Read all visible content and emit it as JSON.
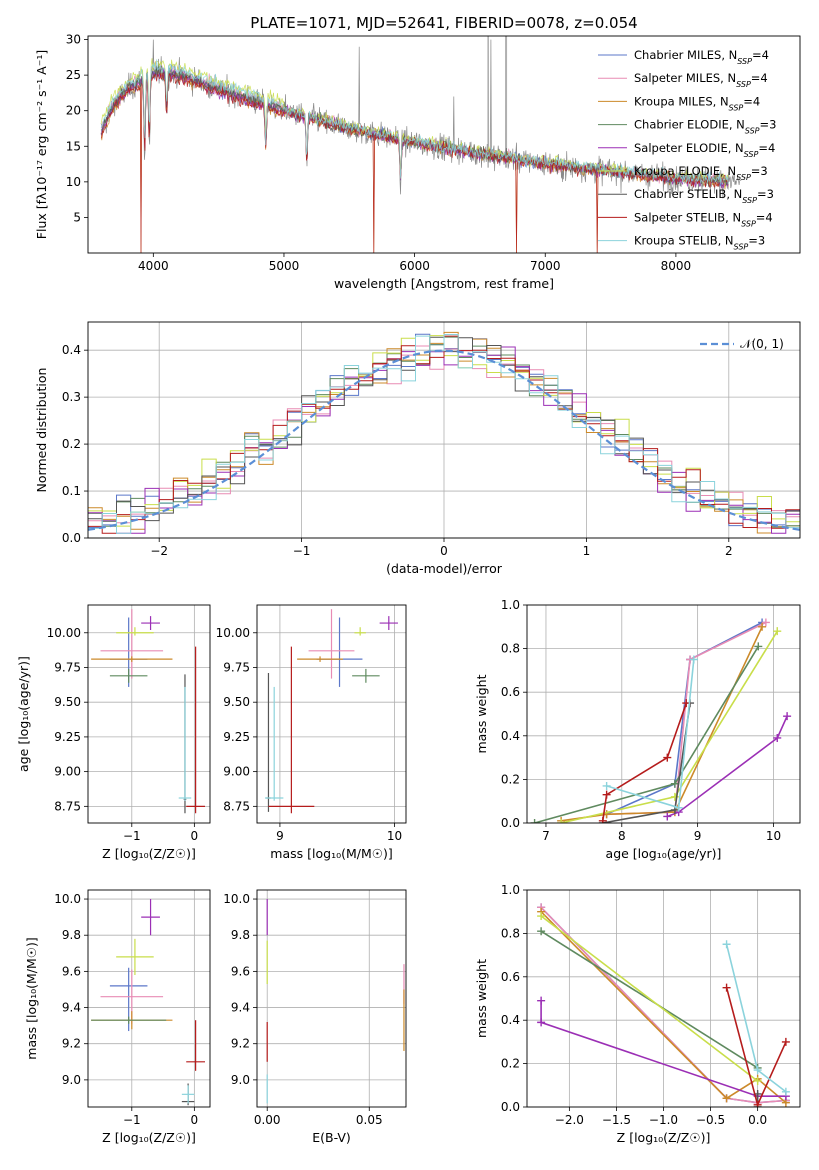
{
  "colors": {
    "chabrier_miles": "#5b77c9",
    "salpeter_miles": "#e88bb4",
    "kroupa_miles": "#cc8a2a",
    "chabrier_elodie": "#5f8a5f",
    "salpeter_elodie": "#9b2fb5",
    "kroupa_elodie": "#c9de4a",
    "chabrier_stelib": "#555555",
    "salpeter_stelib": "#b51c1c",
    "kroupa_stelib": "#8bd3dc",
    "gaussian": "#5b8fd6",
    "grid": "#b0b0b0"
  },
  "chart_data": [
    {
      "id": "spectrum",
      "type": "line",
      "title": "PLATE=1071, MJD=52641, FIBERID=0078, z=0.054",
      "xlabel": "wavelength [Angstrom, rest frame]",
      "ylabel": "Flux [fλ10⁻¹⁷ erg cm⁻² s⁻¹ A⁻¹]",
      "xlim": [
        3500,
        8950
      ],
      "ylim": [
        0,
        30.5
      ],
      "xticks": [
        4000,
        5000,
        6000,
        7000,
        8000
      ],
      "yticks": [
        5,
        10,
        15,
        20,
        25,
        30
      ],
      "legend": {
        "placement": "upper right",
        "entries": [
          {
            "label": "Chabrier MILES, N",
            "sub": "SSP",
            "suffix": "=4",
            "color_key": "chabrier_miles"
          },
          {
            "label": "Salpeter MILES, N",
            "sub": "SSP",
            "suffix": "=4",
            "color_key": "salpeter_miles"
          },
          {
            "label": "Kroupa MILES, N",
            "sub": "SSP",
            "suffix": "=4",
            "color_key": "kroupa_miles"
          },
          {
            "label": "Chabrier ELODIE, N",
            "sub": "SSP",
            "suffix": "=3",
            "color_key": "chabrier_elodie"
          },
          {
            "label": "Salpeter ELODIE, N",
            "sub": "SSP",
            "suffix": "=4",
            "color_key": "salpeter_elodie"
          },
          {
            "label": "Kroupa ELODIE, N",
            "sub": "SSP",
            "suffix": "=3",
            "color_key": "kroupa_elodie"
          },
          {
            "label": "Chabrier STELIB, N",
            "sub": "SSP",
            "suffix": "=3",
            "color_key": "chabrier_stelib"
          },
          {
            "label": "Salpeter STELIB, N",
            "sub": "SSP",
            "suffix": "=4",
            "color_key": "salpeter_stelib"
          },
          {
            "label": "Kroupa STELIB, N",
            "sub": "SSP",
            "suffix": "=3",
            "color_key": "kroupa_stelib"
          }
        ]
      },
      "continuum": [
        [
          3600,
          17
        ],
        [
          3700,
          21
        ],
        [
          3800,
          23
        ],
        [
          3900,
          24
        ],
        [
          4000,
          25.5
        ],
        [
          4200,
          25
        ],
        [
          4500,
          23
        ],
        [
          5000,
          20
        ],
        [
          5500,
          17.5
        ],
        [
          6000,
          15.5
        ],
        [
          6500,
          14
        ],
        [
          7000,
          12.5
        ],
        [
          7500,
          11.5
        ],
        [
          8000,
          10.5
        ],
        [
          8500,
          10
        ]
      ],
      "absorption_lines": [
        [
          3934,
          11
        ],
        [
          3969,
          10
        ],
        [
          4102,
          6
        ],
        [
          4861,
          6
        ],
        [
          5175,
          7
        ],
        [
          5893,
          6
        ]
      ],
      "emission_spikes": [
        [
          4000,
          30
        ],
        [
          5577,
          29
        ],
        [
          6300,
          22
        ],
        [
          6563,
          30
        ],
        [
          6583,
          30
        ],
        [
          6700,
          30
        ]
      ],
      "model_drops": [
        [
          5690,
          0
        ],
        [
          6780,
          0
        ],
        [
          7400,
          0
        ],
        [
          3905,
          0
        ]
      ]
    },
    {
      "id": "residuals",
      "type": "step",
      "xlabel": "(data-model)/error",
      "ylabel": "Normed distribution",
      "xlim": [
        -2.5,
        2.5
      ],
      "ylim": [
        0,
        0.46
      ],
      "xticks": [
        -2,
        -1,
        0,
        1,
        2
      ],
      "yticks": [
        0.0,
        0.1,
        0.2,
        0.3,
        0.4
      ],
      "legend": {
        "placement": "upper right",
        "entries": [
          {
            "label": "𝒩(0, 1)",
            "color_key": "gaussian",
            "style": "dashed"
          }
        ]
      },
      "bin_width": 0.1
    },
    {
      "id": "age_vs_Z",
      "type": "errorbar",
      "xlabel": "Z [log₁₀(Z/Z☉)]",
      "ylabel": "age  [log₁₀(age/yr)]",
      "xlim": [
        -1.7,
        0.25
      ],
      "ylim": [
        8.63,
        10.2
      ],
      "xticks": [
        -1,
        0
      ],
      "yticks": [
        8.75,
        9.0,
        9.25,
        9.5,
        9.75,
        10.0
      ],
      "points": [
        {
          "color_key": "chabrier_miles",
          "x": -1.05,
          "y": 9.81,
          "xerr": 0.3,
          "yerr": [
            0.2,
            0.3
          ]
        },
        {
          "color_key": "salpeter_miles",
          "x": -1.0,
          "y": 9.87,
          "xerr": 0.5,
          "yerr": [
            0.2,
            0.3
          ]
        },
        {
          "color_key": "kroupa_miles",
          "x": -1.0,
          "y": 9.81,
          "xerr": 0.65,
          "yerr": [
            0.02,
            0.02
          ]
        },
        {
          "color_key": "chabrier_elodie",
          "x": -1.05,
          "y": 9.69,
          "xerr": 0.3,
          "yerr": [
            0.05,
            0.05
          ]
        },
        {
          "color_key": "salpeter_elodie",
          "x": -0.7,
          "y": 10.07,
          "xerr": 0.15,
          "yerr": [
            0.05,
            0.05
          ]
        },
        {
          "color_key": "kroupa_elodie",
          "x": -0.95,
          "y": 10.0,
          "xerr": 0.3,
          "yerr": [
            0.02,
            0.04
          ]
        },
        {
          "color_key": "chabrier_stelib",
          "x": -0.15,
          "y": 8.8,
          "xerr": 0.02,
          "yerr": [
            0.1,
            0.9
          ]
        },
        {
          "color_key": "salpeter_stelib",
          "x": 0.02,
          "y": 8.75,
          "xerr": 0.15,
          "yerr": [
            0.05,
            1.15
          ]
        },
        {
          "color_key": "kroupa_stelib",
          "x": -0.15,
          "y": 8.81,
          "xerr": 0.1,
          "yerr": [
            0.02,
            0.8
          ]
        }
      ]
    },
    {
      "id": "age_vs_mass",
      "type": "errorbar",
      "xlabel": "mass [log₁₀(M/M☉)]",
      "ylabel": "",
      "xlim": [
        8.8,
        10.1
      ],
      "ylim": [
        8.63,
        10.2
      ],
      "xticks": [
        9,
        10
      ],
      "yticks": [
        8.75,
        9.0,
        9.25,
        9.5,
        9.75,
        10.0
      ],
      "points": [
        {
          "color_key": "chabrier_miles",
          "x": 9.52,
          "y": 9.81,
          "xerr": 0.2,
          "yerr": [
            0.2,
            0.3
          ]
        },
        {
          "color_key": "salpeter_miles",
          "x": 9.45,
          "y": 9.87,
          "xerr": 0.2,
          "yerr": [
            0.2,
            0.3
          ]
        },
        {
          "color_key": "kroupa_miles",
          "x": 9.35,
          "y": 9.81,
          "xerr": 0.2,
          "yerr": [
            0.02,
            0.02
          ]
        },
        {
          "color_key": "chabrier_elodie",
          "x": 9.75,
          "y": 9.69,
          "xerr": 0.12,
          "yerr": [
            0.05,
            0.05
          ]
        },
        {
          "color_key": "salpeter_elodie",
          "x": 9.95,
          "y": 10.07,
          "xerr": 0.08,
          "yerr": [
            0.05,
            0.05
          ]
        },
        {
          "color_key": "kroupa_elodie",
          "x": 9.7,
          "y": 10.0,
          "xerr": 0.05,
          "yerr": [
            0.02,
            0.04
          ]
        },
        {
          "color_key": "chabrier_stelib",
          "x": 8.9,
          "y": 8.81,
          "xerr": 0.02,
          "yerr": [
            0.1,
            0.9
          ]
        },
        {
          "color_key": "salpeter_stelib",
          "x": 9.1,
          "y": 8.75,
          "xerr": 0.2,
          "yerr": [
            0.05,
            1.15
          ]
        },
        {
          "color_key": "kroupa_stelib",
          "x": 8.95,
          "y": 8.81,
          "xerr": 0.08,
          "yerr": [
            0.02,
            0.8
          ]
        }
      ]
    },
    {
      "id": "weight_vs_age",
      "type": "line",
      "xlabel": "age  [log₁₀(age/yr)]",
      "ylabel": "mass weight",
      "xlim": [
        6.75,
        10.35
      ],
      "ylim": [
        0,
        1.0
      ],
      "xticks": [
        7,
        8,
        9,
        10
      ],
      "yticks": [
        0.0,
        0.2,
        0.4,
        0.6,
        0.8,
        1.0
      ],
      "series": [
        {
          "color_key": "chabrier_miles",
          "points": [
            [
              7.8,
              0.04
            ],
            [
              8.7,
              0.18
            ],
            [
              8.9,
              0.75
            ],
            [
              9.85,
              0.92
            ]
          ]
        },
        {
          "color_key": "salpeter_miles",
          "points": [
            [
              7.8,
              0.04
            ],
            [
              8.7,
              0.05
            ],
            [
              8.9,
              0.75
            ],
            [
              9.9,
              0.92
            ]
          ]
        },
        {
          "color_key": "kroupa_miles",
          "points": [
            [
              7.2,
              0.01
            ],
            [
              7.8,
              0.04
            ],
            [
              8.7,
              0.05
            ],
            [
              9.85,
              0.9
            ]
          ]
        },
        {
          "color_key": "chabrier_elodie",
          "points": [
            [
              6.85,
              0.0
            ],
            [
              8.7,
              0.18
            ],
            [
              9.8,
              0.81
            ]
          ]
        },
        {
          "color_key": "salpeter_elodie",
          "points": [
            [
              8.6,
              0.03
            ],
            [
              8.75,
              0.05
            ],
            [
              10.05,
              0.39
            ],
            [
              10.18,
              0.49
            ]
          ]
        },
        {
          "color_key": "kroupa_elodie",
          "points": [
            [
              7.2,
              0.0
            ],
            [
              8.7,
              0.12
            ],
            [
              10.05,
              0.88
            ]
          ]
        },
        {
          "color_key": "chabrier_stelib",
          "points": [
            [
              7.75,
              0.0
            ],
            [
              8.7,
              0.06
            ],
            [
              8.9,
              0.55
            ]
          ]
        },
        {
          "color_key": "salpeter_stelib",
          "points": [
            [
              7.75,
              0.01
            ],
            [
              7.8,
              0.13
            ],
            [
              8.6,
              0.3
            ],
            [
              8.85,
              0.55
            ]
          ]
        },
        {
          "color_key": "kroupa_stelib",
          "points": [
            [
              7.8,
              0.17
            ],
            [
              8.75,
              0.07
            ],
            [
              8.95,
              0.75
            ]
          ]
        }
      ]
    },
    {
      "id": "mass_vs_Z",
      "type": "errorbar",
      "xlabel": "Z [log₁₀(Z/Z☉)]",
      "ylabel": "mass [log₁₀(M/M☉)]",
      "xlim": [
        -1.7,
        0.25
      ],
      "ylim": [
        8.85,
        10.05
      ],
      "xticks": [
        -1,
        0
      ],
      "yticks": [
        9.0,
        9.2,
        9.4,
        9.6,
        9.8,
        10.0
      ],
      "points": [
        {
          "color_key": "chabrier_miles",
          "x": -1.05,
          "y": 9.52,
          "xerr": 0.3,
          "yerr": [
            0.25,
            0.1
          ]
        },
        {
          "color_key": "salpeter_miles",
          "x": -1.0,
          "y": 9.46,
          "xerr": 0.5,
          "yerr": [
            0.15,
            0.15
          ]
        },
        {
          "color_key": "kroupa_miles",
          "x": -1.0,
          "y": 9.33,
          "xerr": 0.65,
          "yerr": [
            0.05,
            0.05
          ]
        },
        {
          "color_key": "chabrier_elodie",
          "x": -1.05,
          "y": 9.33,
          "xerr": 0.6,
          "yerr": [
            0.02,
            0.02
          ]
        },
        {
          "color_key": "salpeter_elodie",
          "x": -0.7,
          "y": 9.9,
          "xerr": 0.15,
          "yerr": [
            0.1,
            0.1
          ]
        },
        {
          "color_key": "kroupa_elodie",
          "x": -0.95,
          "y": 9.68,
          "xerr": 0.3,
          "yerr": [
            0.1,
            0.1
          ]
        },
        {
          "color_key": "chabrier_stelib",
          "x": -0.1,
          "y": 8.88,
          "xerr": 0.1,
          "yerr": [
            0.02,
            0.1
          ]
        },
        {
          "color_key": "salpeter_stelib",
          "x": 0.02,
          "y": 9.1,
          "xerr": 0.15,
          "yerr": [
            0.05,
            0.23
          ]
        },
        {
          "color_key": "kroupa_stelib",
          "x": -0.1,
          "y": 8.92,
          "xerr": 0.1,
          "yerr": [
            0.05,
            0.05
          ]
        }
      ]
    },
    {
      "id": "mass_vs_ebv",
      "type": "errorbar",
      "xlabel": "E(B-V)",
      "ylabel": "",
      "xlim": [
        -0.005,
        0.068
      ],
      "ylim": [
        8.85,
        10.05
      ],
      "xticks": [
        0.0,
        0.05
      ],
      "yticks": [
        9.0,
        9.2,
        9.4,
        9.6,
        9.8,
        10.0
      ],
      "points": [
        {
          "color_key": "salpeter_elodie",
          "x": 0.0,
          "y": 9.9,
          "xerr": 0.0,
          "yerr": [
            0.1,
            0.1
          ]
        },
        {
          "color_key": "kroupa_elodie",
          "x": 0.0,
          "y": 9.65,
          "xerr": 0.0,
          "yerr": [
            0.12,
            0.12
          ]
        },
        {
          "color_key": "salpeter_stelib",
          "x": 0.0,
          "y": 9.22,
          "xerr": 0.0,
          "yerr": [
            0.12,
            0.1
          ]
        },
        {
          "color_key": "kroupa_stelib",
          "x": 0.0,
          "y": 8.95,
          "xerr": 0.0,
          "yerr": [
            0.08,
            0.08
          ]
        },
        {
          "color_key": "salpeter_miles",
          "x": 0.067,
          "y": 9.52,
          "xerr": 0.0,
          "yerr": [
            0.1,
            0.12
          ]
        },
        {
          "color_key": "kroupa_miles",
          "x": 0.067,
          "y": 9.33,
          "xerr": 0.0,
          "yerr": [
            0.17,
            0.17
          ]
        }
      ]
    },
    {
      "id": "weight_vs_Z",
      "type": "line",
      "xlabel": "Z [log₁₀(Z/Z☉)]",
      "ylabel": "mass weight",
      "xlim": [
        -2.45,
        0.45
      ],
      "ylim": [
        0,
        1.0
      ],
      "xticks": [
        -2.0,
        -1.5,
        -1.0,
        -0.5,
        0.0
      ],
      "yticks": [
        0.0,
        0.2,
        0.4,
        0.6,
        0.8,
        1.0
      ],
      "series": [
        {
          "color_key": "chabrier_miles",
          "points": [
            [
              -2.3,
              0.92
            ],
            [
              -0.33,
              0.04
            ],
            [
              0.0,
              0.02
            ],
            [
              0.3,
              0.03
            ]
          ]
        },
        {
          "color_key": "salpeter_miles",
          "points": [
            [
              -2.3,
              0.92
            ],
            [
              -0.33,
              0.04
            ],
            [
              0.0,
              0.02
            ],
            [
              0.3,
              0.03
            ]
          ]
        },
        {
          "color_key": "kroupa_miles",
          "points": [
            [
              -2.3,
              0.9
            ],
            [
              -0.33,
              0.04
            ],
            [
              0.0,
              0.13
            ],
            [
              0.3,
              0.02
            ]
          ]
        },
        {
          "color_key": "chabrier_elodie",
          "points": [
            [
              -2.3,
              0.81
            ],
            [
              0.0,
              0.18
            ]
          ]
        },
        {
          "color_key": "salpeter_elodie",
          "points": [
            [
              -2.3,
              0.49
            ],
            [
              -2.3,
              0.39
            ],
            [
              0.0,
              0.05
            ],
            [
              0.3,
              0.05
            ]
          ]
        },
        {
          "color_key": "kroupa_elodie",
          "points": [
            [
              -2.3,
              0.88
            ],
            [
              0.0,
              0.12
            ]
          ]
        },
        {
          "color_key": "chabrier_stelib",
          "points": [
            [
              0.0,
              0.06
            ],
            [
              0.0,
              0.0
            ]
          ]
        },
        {
          "color_key": "salpeter_stelib",
          "points": [
            [
              -0.33,
              0.55
            ],
            [
              0.0,
              0.01
            ],
            [
              0.3,
              0.3
            ]
          ]
        },
        {
          "color_key": "kroupa_stelib",
          "points": [
            [
              -0.33,
              0.75
            ],
            [
              0.0,
              0.17
            ],
            [
              0.3,
              0.07
            ]
          ]
        }
      ]
    }
  ]
}
